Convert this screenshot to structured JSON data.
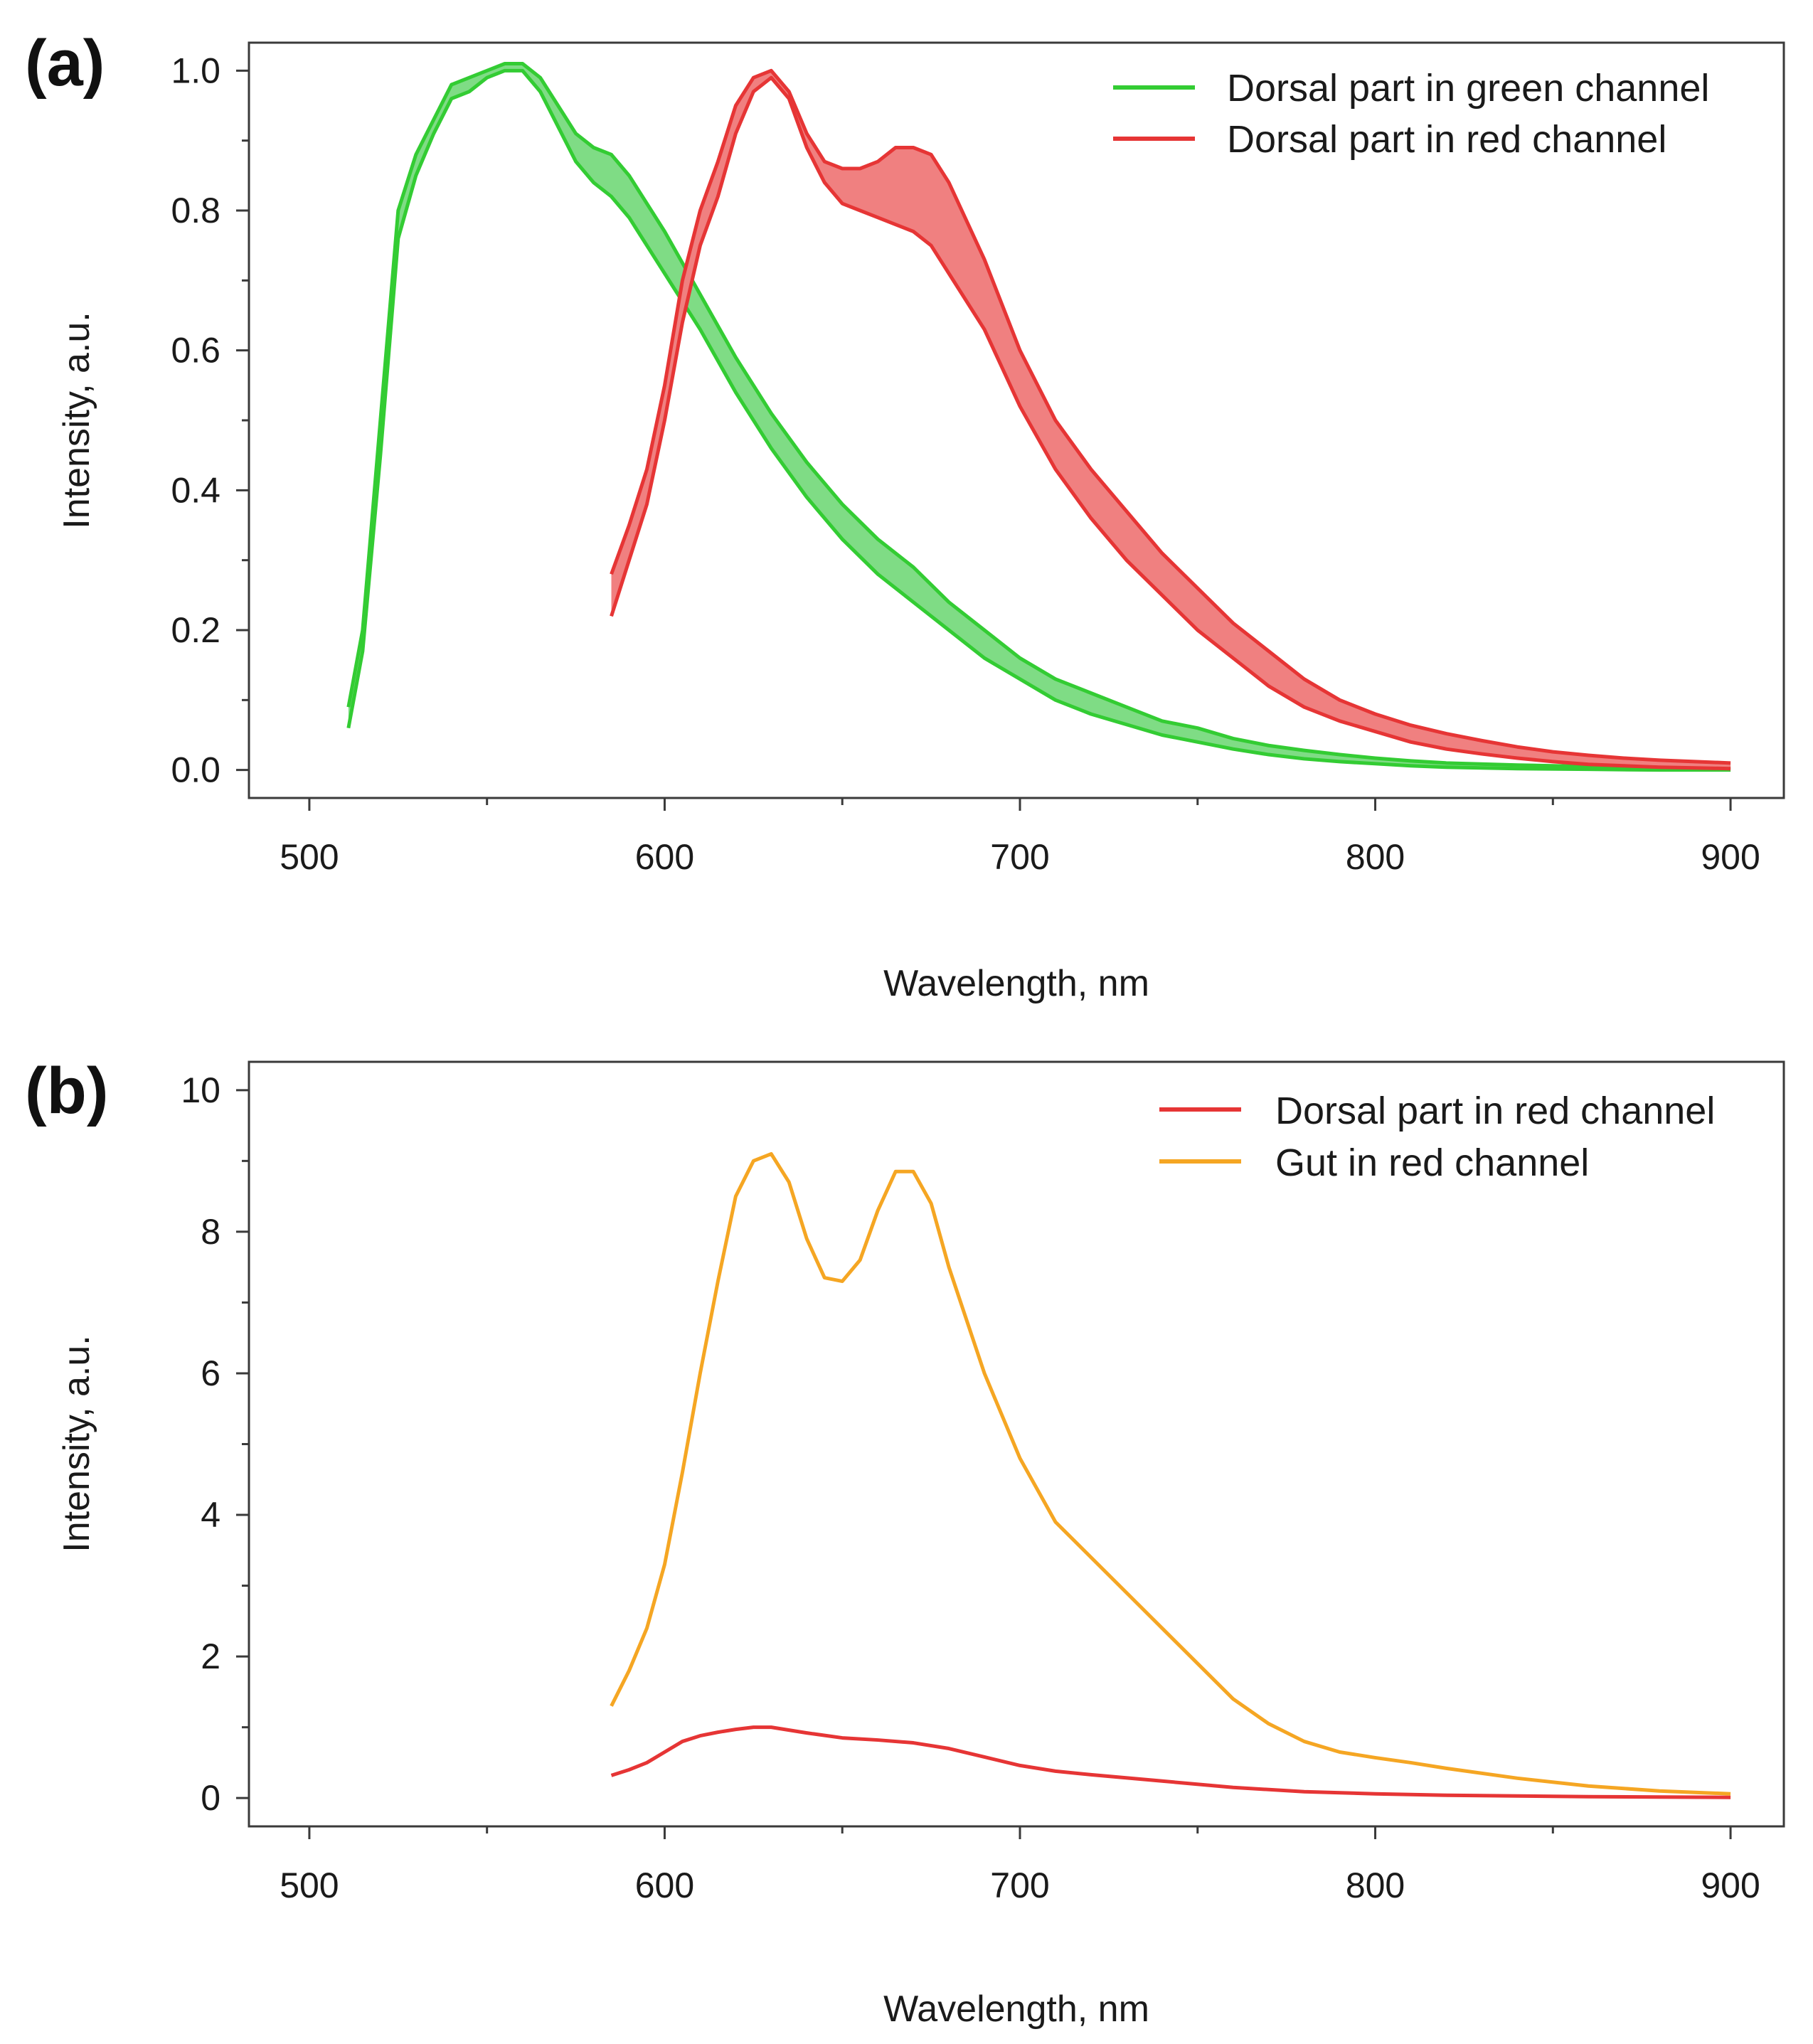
{
  "chart_data": [
    {
      "type": "area",
      "panel_label": "(a)",
      "xlabel": "Wavelength, nm",
      "ylabel": "Intensity, a.u.",
      "xlim": [
        483,
        915
      ],
      "ylim": [
        -0.04,
        1.04
      ],
      "xticks": [
        500,
        600,
        700,
        800,
        900
      ],
      "xtick_labels": [
        "500",
        "600",
        "700",
        "800",
        "900"
      ],
      "yticks": [
        0.0,
        0.2,
        0.4,
        0.6,
        0.8,
        1.0
      ],
      "ytick_labels": [
        "0.0",
        "0.2",
        "0.4",
        "0.6",
        "0.8",
        "1.0"
      ],
      "grid": false,
      "legend_position": "top-right",
      "series": [
        {
          "name": "Dorsal part in green channel",
          "color": "#33cc33",
          "fill": "#7fdc85",
          "x": [
            511,
            515,
            520,
            525,
            530,
            535,
            540,
            545,
            550,
            555,
            560,
            565,
            570,
            575,
            580,
            585,
            590,
            600,
            610,
            620,
            630,
            640,
            650,
            660,
            670,
            680,
            690,
            700,
            710,
            720,
            730,
            740,
            750,
            760,
            770,
            780,
            790,
            800,
            810,
            820,
            840,
            860,
            880,
            900
          ],
          "upper": [
            0.09,
            0.2,
            0.5,
            0.8,
            0.88,
            0.93,
            0.98,
            0.99,
            1.0,
            1.01,
            1.01,
            0.99,
            0.95,
            0.91,
            0.89,
            0.88,
            0.85,
            0.77,
            0.68,
            0.59,
            0.51,
            0.44,
            0.38,
            0.33,
            0.29,
            0.24,
            0.2,
            0.16,
            0.13,
            0.11,
            0.09,
            0.07,
            0.06,
            0.045,
            0.035,
            0.028,
            0.022,
            0.017,
            0.013,
            0.01,
            0.007,
            0.005,
            0.004,
            0.003
          ],
          "lower": [
            0.06,
            0.17,
            0.45,
            0.76,
            0.85,
            0.91,
            0.96,
            0.97,
            0.99,
            1.0,
            1.0,
            0.97,
            0.92,
            0.87,
            0.84,
            0.82,
            0.79,
            0.71,
            0.63,
            0.54,
            0.46,
            0.39,
            0.33,
            0.28,
            0.24,
            0.2,
            0.16,
            0.13,
            0.1,
            0.08,
            0.065,
            0.05,
            0.04,
            0.03,
            0.022,
            0.016,
            0.012,
            0.009,
            0.006,
            0.004,
            0.002,
            0.001,
            0.0,
            0.0
          ]
        },
        {
          "name": "Dorsal part in red channel",
          "color": "#e63535",
          "fill": "#f08080",
          "x": [
            585,
            590,
            595,
            600,
            605,
            610,
            615,
            620,
            625,
            630,
            635,
            640,
            645,
            650,
            655,
            660,
            665,
            670,
            675,
            680,
            690,
            700,
            710,
            720,
            730,
            740,
            750,
            760,
            770,
            780,
            790,
            800,
            810,
            820,
            830,
            840,
            850,
            860,
            870,
            880,
            890,
            900
          ],
          "upper": [
            0.28,
            0.35,
            0.43,
            0.55,
            0.7,
            0.8,
            0.87,
            0.95,
            0.99,
            1.0,
            0.97,
            0.91,
            0.87,
            0.86,
            0.86,
            0.87,
            0.89,
            0.89,
            0.88,
            0.84,
            0.73,
            0.6,
            0.5,
            0.43,
            0.37,
            0.31,
            0.26,
            0.21,
            0.17,
            0.13,
            0.1,
            0.08,
            0.064,
            0.052,
            0.042,
            0.033,
            0.026,
            0.021,
            0.017,
            0.014,
            0.012,
            0.01
          ],
          "lower": [
            0.22,
            0.3,
            0.38,
            0.5,
            0.64,
            0.75,
            0.82,
            0.91,
            0.97,
            0.99,
            0.96,
            0.89,
            0.84,
            0.81,
            0.8,
            0.79,
            0.78,
            0.77,
            0.75,
            0.71,
            0.63,
            0.52,
            0.43,
            0.36,
            0.3,
            0.25,
            0.2,
            0.16,
            0.12,
            0.09,
            0.07,
            0.055,
            0.04,
            0.03,
            0.023,
            0.017,
            0.012,
            0.008,
            0.006,
            0.004,
            0.003,
            0.002
          ]
        }
      ]
    },
    {
      "type": "line",
      "panel_label": "(b)",
      "xlabel": "Wavelength, nm",
      "ylabel": "Intensity, a.u.",
      "xlim": [
        483,
        915
      ],
      "ylim": [
        -0.4,
        10.4
      ],
      "xticks": [
        500,
        600,
        700,
        800,
        900
      ],
      "xtick_labels": [
        "500",
        "600",
        "700",
        "800",
        "900"
      ],
      "yticks": [
        0,
        2,
        4,
        6,
        8,
        10
      ],
      "ytick_labels": [
        "0",
        "2",
        "4",
        "6",
        "8",
        "10"
      ],
      "grid": false,
      "legend_position": "top-right",
      "series": [
        {
          "name": "Dorsal part in red channel",
          "color": "#e63535",
          "x": [
            585,
            590,
            595,
            600,
            605,
            610,
            615,
            620,
            625,
            630,
            640,
            650,
            660,
            670,
            680,
            690,
            700,
            710,
            720,
            740,
            760,
            780,
            800,
            820,
            840,
            860,
            880,
            900
          ],
          "values": [
            0.32,
            0.4,
            0.5,
            0.65,
            0.8,
            0.88,
            0.93,
            0.97,
            1.0,
            1.0,
            0.92,
            0.85,
            0.82,
            0.78,
            0.7,
            0.58,
            0.46,
            0.38,
            0.33,
            0.24,
            0.15,
            0.09,
            0.06,
            0.04,
            0.03,
            0.02,
            0.015,
            0.01
          ]
        },
        {
          "name": "Gut in red channel",
          "color": "#f5a623",
          "x": [
            585,
            590,
            595,
            600,
            605,
            610,
            615,
            620,
            625,
            630,
            635,
            640,
            645,
            650,
            655,
            660,
            665,
            670,
            675,
            680,
            690,
            700,
            710,
            720,
            730,
            740,
            750,
            760,
            770,
            780,
            790,
            800,
            810,
            820,
            840,
            860,
            880,
            900
          ],
          "values": [
            1.3,
            1.8,
            2.4,
            3.3,
            4.6,
            6.0,
            7.3,
            8.5,
            9.0,
            9.1,
            8.7,
            7.9,
            7.35,
            7.3,
            7.6,
            8.3,
            8.85,
            8.85,
            8.4,
            7.5,
            6.0,
            4.8,
            3.9,
            3.4,
            2.9,
            2.4,
            1.9,
            1.4,
            1.05,
            0.8,
            0.65,
            0.57,
            0.5,
            0.42,
            0.28,
            0.17,
            0.1,
            0.06
          ]
        }
      ]
    }
  ]
}
